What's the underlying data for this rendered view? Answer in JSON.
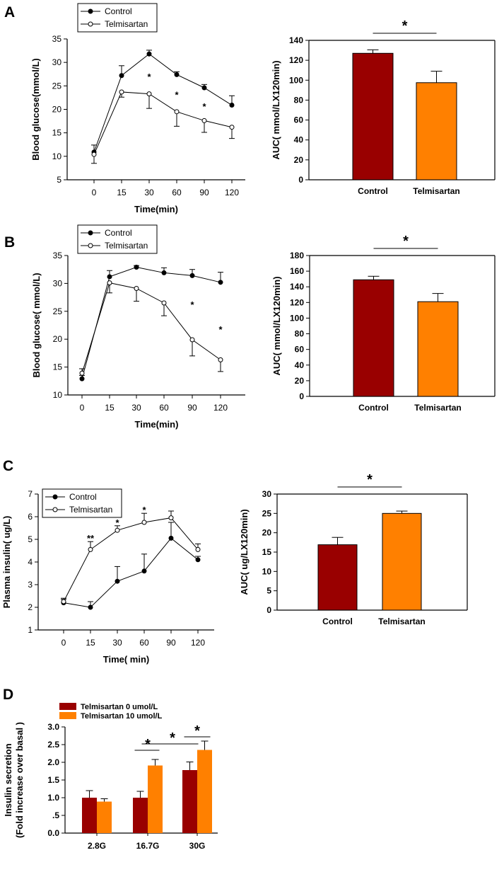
{
  "colors": {
    "control": "#990000",
    "telmisartan": "#ff8000"
  },
  "chart_data": [
    {
      "id": "A1",
      "panel_label": "A",
      "type": "line",
      "xlabel": "Time(min)",
      "ylabel": "Blood glucose(mmol/L)",
      "categories": [
        "0",
        "15",
        "30",
        "60",
        "90",
        "120"
      ],
      "ylim": [
        5,
        35
      ],
      "yticks": [
        "5",
        "10",
        "15",
        "20",
        "25",
        "30",
        "35"
      ],
      "legend": [
        "Control",
        "Telmisartan"
      ],
      "series": [
        {
          "name": "Control",
          "values": [
            10.9,
            27.2,
            31.8,
            27.4,
            24.6,
            20.9
          ],
          "errors": [
            1.5,
            2.1,
            0.8,
            0.6,
            0.7,
            2.0
          ]
        },
        {
          "name": "Telmisartan",
          "values": [
            10.4,
            23.7,
            23.3,
            19.5,
            17.6,
            16.2
          ],
          "errors": [
            1.9,
            1.1,
            3.1,
            3.1,
            2.5,
            2.4
          ]
        }
      ],
      "annotations": [
        {
          "text": "*",
          "category": "30"
        },
        {
          "text": "*",
          "category": "60"
        },
        {
          "text": "*",
          "category": "90"
        }
      ]
    },
    {
      "id": "A2",
      "type": "bar",
      "ylabel": "AUC( mmol/LX120min)",
      "categories": [
        "Control",
        "Telmisartan"
      ],
      "values": [
        127,
        97.5
      ],
      "errors": [
        3.5,
        11.5
      ],
      "ylim": [
        0,
        140
      ],
      "yticks": [
        "0",
        "20",
        "40",
        "60",
        "80",
        "100",
        "120",
        "140"
      ],
      "significance": "*"
    },
    {
      "id": "B1",
      "panel_label": "B",
      "type": "line",
      "xlabel": "Time(min)",
      "ylabel": "Blood glucose( mmol/L)",
      "categories": [
        "0",
        "15",
        "30",
        "60",
        "90",
        "120"
      ],
      "ylim": [
        10,
        35
      ],
      "yticks": [
        "10",
        "15",
        "20",
        "25",
        "30",
        "35"
      ],
      "legend": [
        "Control",
        "Telmisartan"
      ],
      "series": [
        {
          "name": "Control",
          "values": [
            12.9,
            31.2,
            32.9,
            31.9,
            31.4,
            30.2
          ],
          "errors": [
            0.6,
            1.1,
            0.3,
            0.9,
            1.1,
            1.8
          ]
        },
        {
          "name": "Telmisartan",
          "values": [
            13.9,
            30.1,
            29.1,
            26.5,
            19.9,
            16.3
          ],
          "errors": [
            0.8,
            1.8,
            2.3,
            2.3,
            2.9,
            2.1
          ]
        }
      ],
      "annotations": [
        {
          "text": "*",
          "category": "90"
        },
        {
          "text": "*",
          "category": "120"
        }
      ]
    },
    {
      "id": "B2",
      "type": "bar",
      "ylabel": "AUC( mmol/LX120min)",
      "categories": [
        "Control",
        "Telmisartan"
      ],
      "values": [
        149,
        121
      ],
      "errors": [
        4.5,
        10.5
      ],
      "ylim": [
        0,
        180
      ],
      "yticks": [
        "0",
        "20",
        "40",
        "60",
        "80",
        "100",
        "120",
        "140",
        "160",
        "180"
      ],
      "significance": "*"
    },
    {
      "id": "C1",
      "panel_label": "C",
      "type": "line",
      "xlabel": "Time( min)",
      "ylabel": "Plasma insulin( ug/L)",
      "categories": [
        "0",
        "15",
        "30",
        "60",
        "90",
        "120"
      ],
      "ylim": [
        1,
        7
      ],
      "yticks": [
        "1",
        "2",
        "3",
        "4",
        "5",
        "6",
        "7"
      ],
      "legend": [
        "Control",
        "Telmisartan"
      ],
      "series": [
        {
          "name": "Control",
          "values": [
            2.2,
            2.0,
            3.15,
            3.6,
            5.05,
            4.1
          ],
          "errors": [
            0.15,
            0.25,
            0.65,
            0.75,
            0.7,
            0.15
          ]
        },
        {
          "name": "Telmisartan",
          "values": [
            2.25,
            4.55,
            5.4,
            5.75,
            5.95,
            4.55
          ],
          "errors": [
            0.15,
            0.35,
            0.2,
            0.4,
            0.3,
            0.25
          ]
        }
      ],
      "annotations": [
        {
          "text": "**",
          "category": "15"
        },
        {
          "text": "*",
          "category": "30"
        },
        {
          "text": "*",
          "category": "60"
        }
      ]
    },
    {
      "id": "C2",
      "type": "bar",
      "ylabel": "AUC( ug/LX120min)",
      "categories": [
        "Control",
        "Telmisartan"
      ],
      "values": [
        16.9,
        25.0
      ],
      "errors": [
        1.9,
        0.6
      ],
      "ylim": [
        0,
        30
      ],
      "yticks": [
        "0",
        "5",
        "10",
        "15",
        "20",
        "25",
        "30"
      ],
      "significance": "*"
    },
    {
      "id": "D1",
      "panel_label": "D",
      "type": "bar",
      "ylabel": "Insulin secretion",
      "ylabel2": "(Fold  increase over basal )",
      "categories": [
        "2.8G",
        "16.7G",
        "30G"
      ],
      "ylim": [
        0,
        3
      ],
      "yticks": [
        "0.0",
        ".5",
        "1.0",
        "1.5",
        "2.0",
        "2.5",
        "3.0"
      ],
      "series": [
        {
          "name": "Telmisartan  0 umol/L",
          "values": [
            1.0,
            1.0,
            1.78
          ],
          "errors": [
            0.2,
            0.18,
            0.23
          ]
        },
        {
          "name": "Telmisartan  10 umol/L",
          "values": [
            0.89,
            1.91,
            2.35
          ],
          "errors": [
            0.08,
            0.17,
            0.25
          ]
        }
      ],
      "significance": [
        "*",
        "*",
        "*"
      ]
    }
  ]
}
